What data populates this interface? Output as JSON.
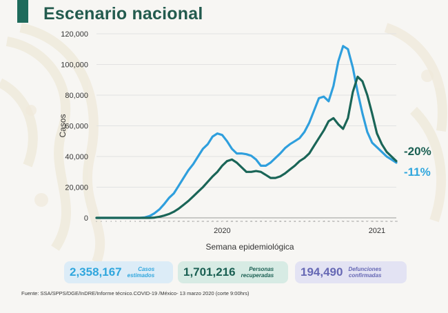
{
  "title": "Escenario nacional",
  "chart_data": {
    "type": "line",
    "ylabel": "Casos",
    "xlabel": "Semana epidemiológica",
    "ylim": [
      0,
      120000
    ],
    "yticks": [
      0,
      20000,
      40000,
      60000,
      80000,
      100000,
      120000
    ],
    "ytick_labels": [
      "0",
      "20,000",
      "40,000",
      "60,000",
      "80,000",
      "100,000",
      "120,000"
    ],
    "x": [
      1,
      2,
      3,
      4,
      5,
      6,
      7,
      8,
      9,
      10,
      11,
      12,
      13,
      14,
      15,
      16,
      17,
      18,
      19,
      20,
      21,
      22,
      23,
      24,
      25,
      26,
      27,
      28,
      29,
      30,
      31,
      32,
      33,
      34,
      35,
      36,
      37,
      38,
      39,
      40,
      41,
      42,
      43,
      44,
      45,
      46,
      47,
      48,
      49,
      50,
      51,
      52,
      53,
      54,
      55,
      56,
      57,
      58,
      59,
      60,
      61,
      62,
      63
    ],
    "year_labels": [
      {
        "label": "2020",
        "at": 27
      },
      {
        "label": "2021",
        "at": 59
      }
    ],
    "grid": true,
    "series": [
      {
        "color": "#2f9fdd",
        "values": [
          0,
          0,
          0,
          0,
          0,
          0,
          0,
          0,
          0,
          0,
          300,
          1200,
          3000,
          5500,
          9000,
          13000,
          16000,
          21000,
          26000,
          31000,
          35000,
          40000,
          45000,
          48000,
          53000,
          55000,
          54000,
          50000,
          45000,
          42000,
          42000,
          41500,
          40500,
          38000,
          34000,
          34000,
          36000,
          39000,
          42000,
          45500,
          48000,
          50000,
          52000,
          56000,
          62000,
          70000,
          78000,
          79000,
          76000,
          86000,
          102000,
          112000,
          110000,
          98000,
          82000,
          68000,
          56000,
          49000,
          46000,
          43000,
          40000,
          38000,
          36000
        ]
      },
      {
        "color": "#1a6557",
        "values": [
          0,
          0,
          0,
          0,
          0,
          0,
          0,
          0,
          0,
          0,
          0,
          0,
          200,
          700,
          1500,
          2500,
          4000,
          6000,
          8500,
          11000,
          14000,
          17000,
          20000,
          23500,
          27000,
          30000,
          34000,
          37000,
          38000,
          36000,
          33000,
          30000,
          30000,
          30500,
          30000,
          28000,
          26000,
          26000,
          27000,
          29000,
          31500,
          34000,
          37000,
          39000,
          42000,
          47000,
          52000,
          57000,
          63000,
          65000,
          61000,
          58000,
          65000,
          82000,
          92000,
          89000,
          80000,
          68000,
          55000,
          48000,
          43000,
          40000,
          37000
        ]
      }
    ],
    "annotations": [
      {
        "label": "-20%",
        "color": "#1a5f52"
      },
      {
        "label": "-11%",
        "color": "#2fa6dd"
      }
    ]
  },
  "stats": [
    {
      "value": "2,358,167",
      "label_line1": "Casos",
      "label_line2": "estimados"
    },
    {
      "value": "1,701,216",
      "label_line1": "Personas",
      "label_line2": "recuperadas"
    },
    {
      "value": "194,490",
      "label_line1": "Defunciones",
      "label_line2": "confirmadas"
    }
  ],
  "source": "Fuente: SSA/SPPS/DGE/InDRE/Informe técnico.COVID-19 /México- 13 marzo 2020 (corte 9:00hrs)",
  "colors": {
    "accent": "#1f6b5c",
    "title": "#235b4e",
    "blue": "#2f9fdd",
    "green": "#1a6557",
    "purple": "#6668b4"
  }
}
